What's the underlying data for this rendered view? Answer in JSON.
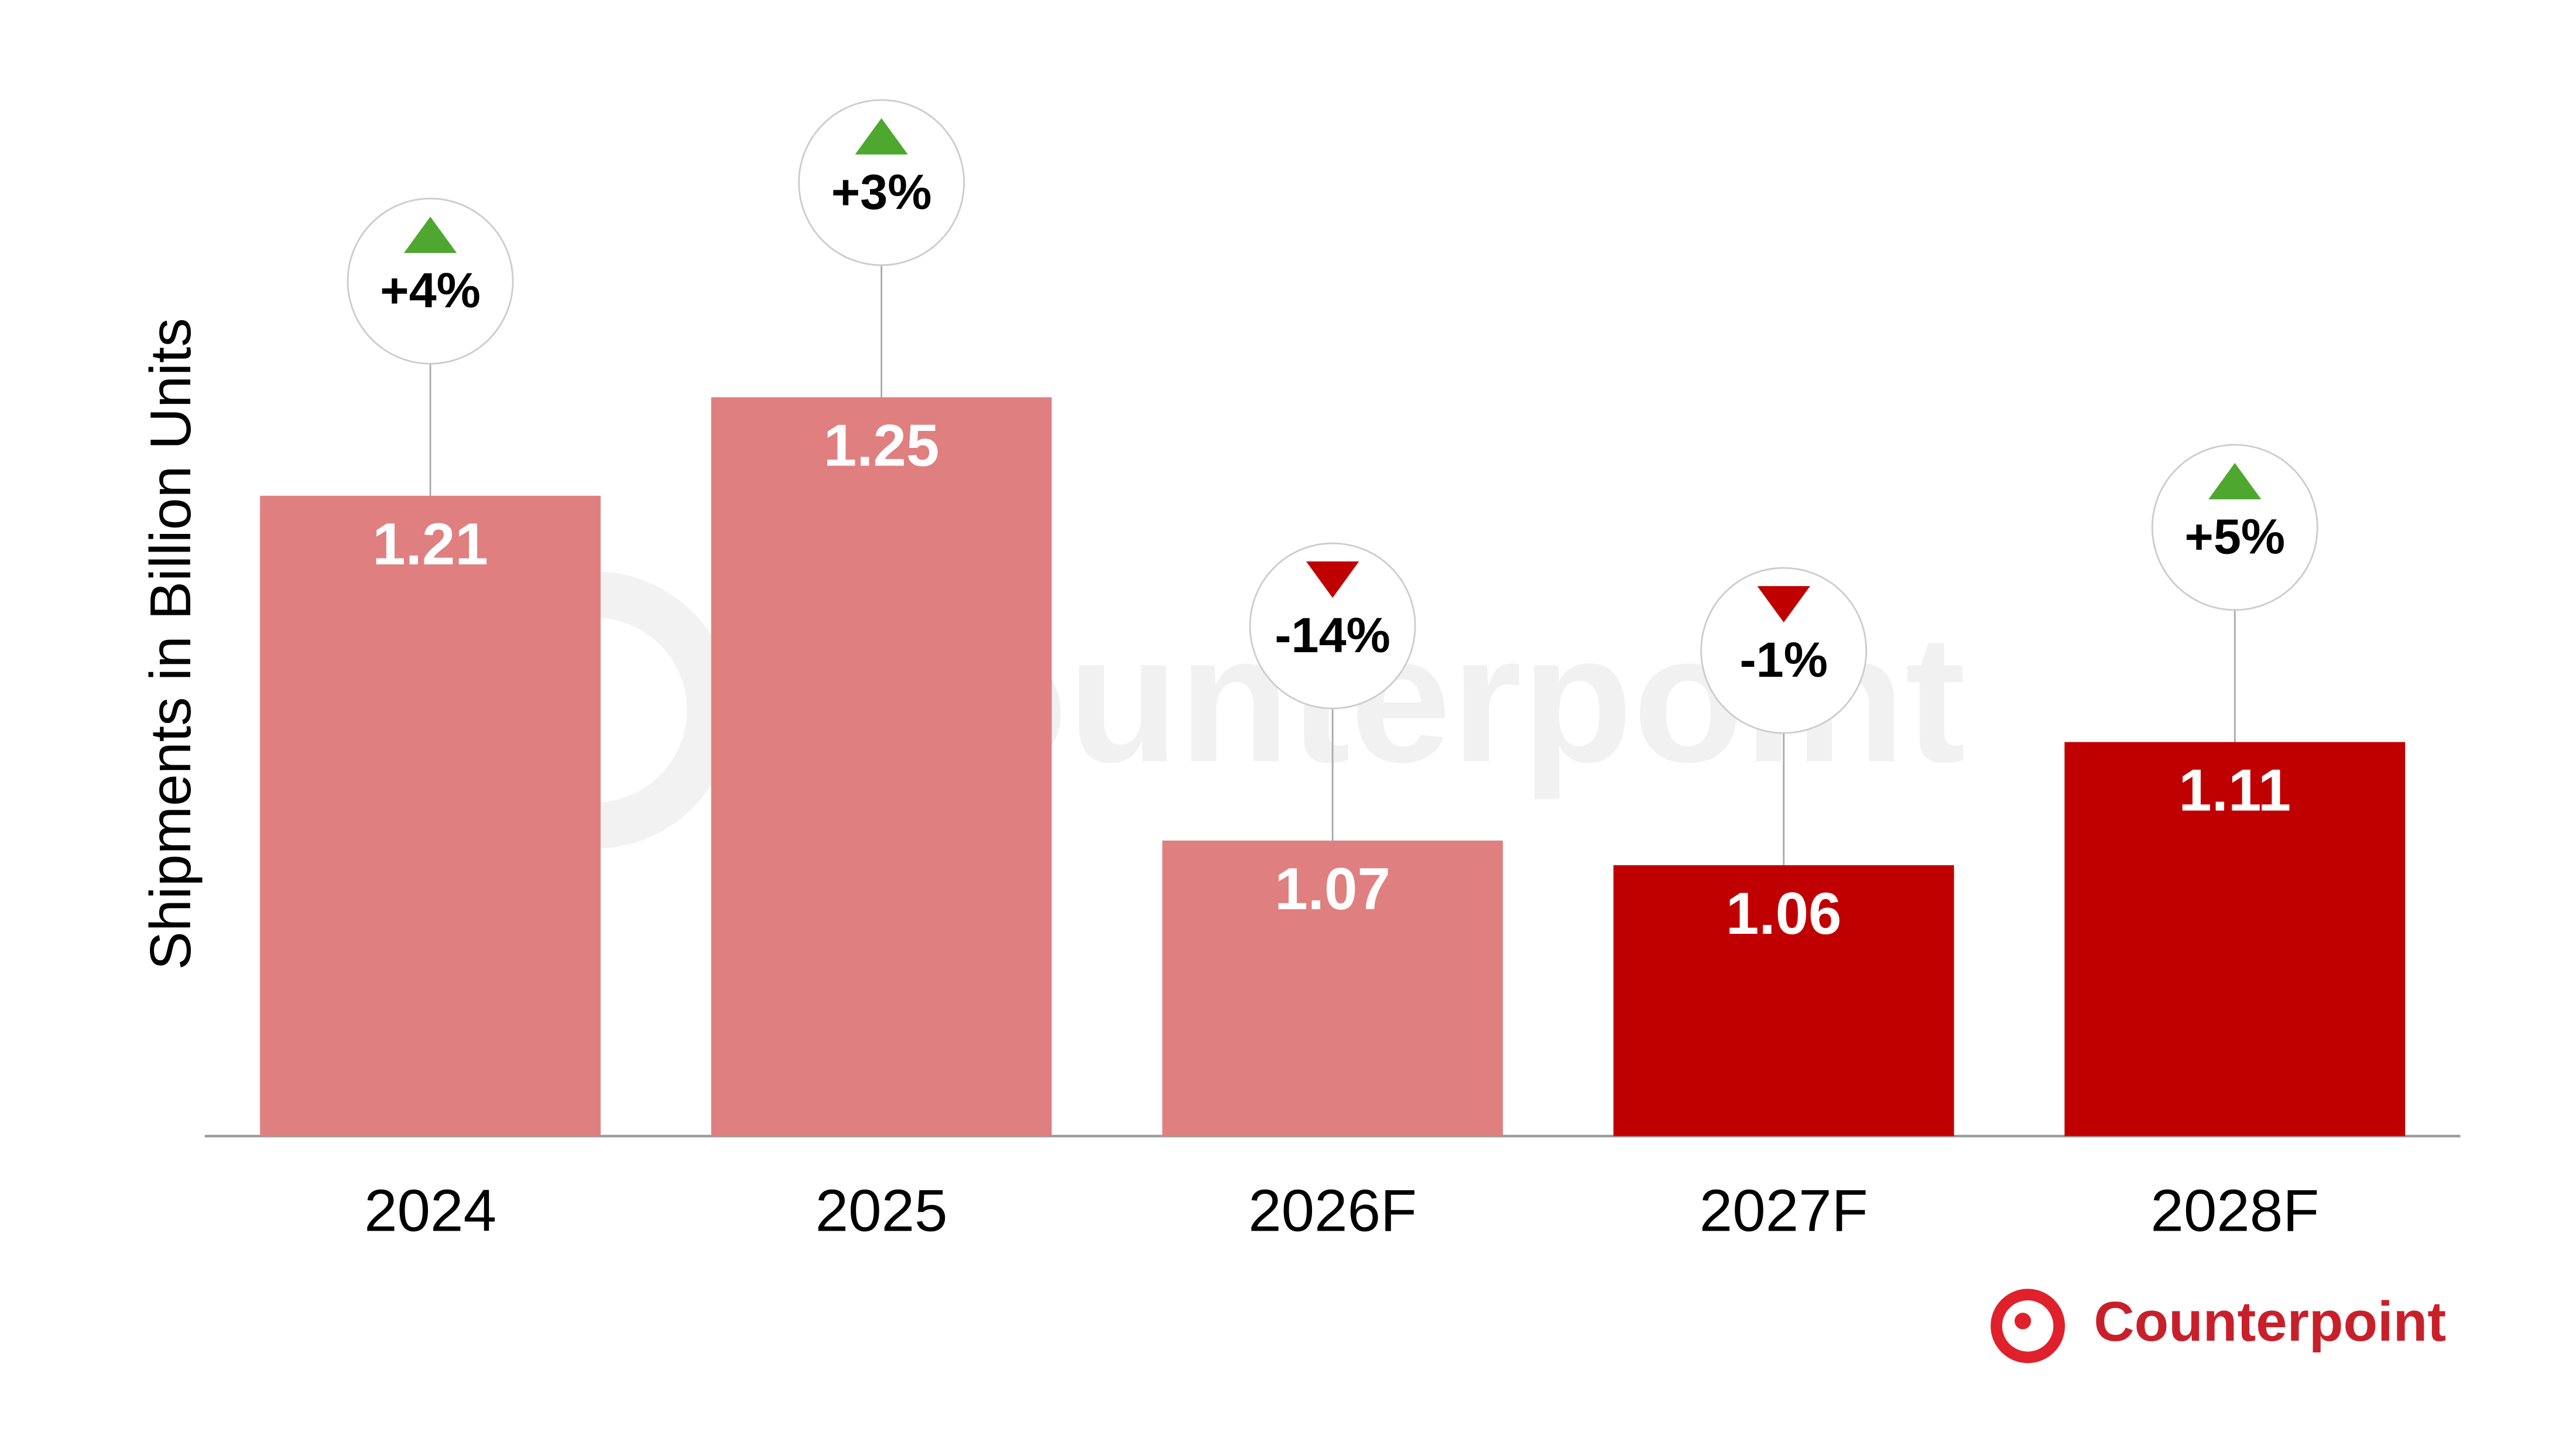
{
  "chart_data": {
    "type": "bar",
    "y_axis_label": "Shipments in Billion Units",
    "categories": [
      "2024",
      "2025",
      "2026F",
      "2027F",
      "2028F"
    ],
    "values": [
      1.21,
      1.25,
      1.07,
      1.06,
      1.11
    ],
    "colors": [
      "#e07f80",
      "#e07f80",
      "#e07f80",
      "#c00000",
      "#c00000"
    ],
    "growth": [
      4,
      3,
      -14,
      -1,
      5
    ],
    "growth_labels": [
      "+4%",
      "+3%",
      "-14%",
      "-1%",
      "+5%"
    ],
    "up_color": "#4ea72e",
    "down_color": "#c00000",
    "ylim": [
      0.95,
      1.3
    ],
    "brand": "Counterpoint"
  }
}
